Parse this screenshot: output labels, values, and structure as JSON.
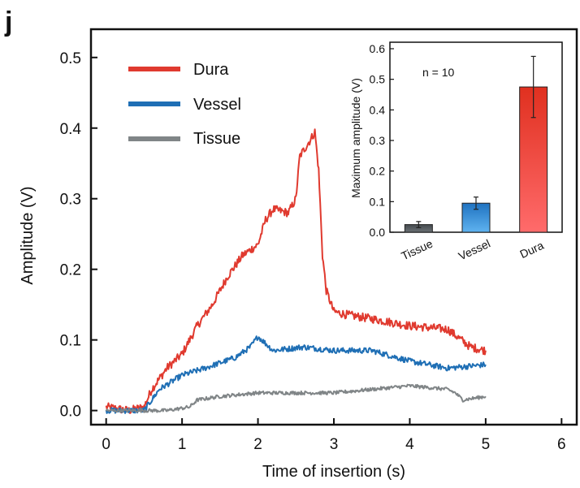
{
  "panel_label": "j",
  "chart_data": [
    {
      "type": "line",
      "title": "",
      "xlabel": "Time of insertion (s)",
      "ylabel": "Amplitude (V)",
      "xlim": [
        -0.2,
        6.2
      ],
      "ylim": [
        -0.02,
        0.54
      ],
      "xticks": [
        "0",
        "1",
        "2",
        "3",
        "4",
        "5",
        "6"
      ],
      "xtick_values": [
        0,
        1,
        2,
        3,
        4,
        5,
        6
      ],
      "yticks": [
        "0.0",
        "0.1",
        "0.2",
        "0.3",
        "0.4",
        "0.5"
      ],
      "ytick_values": [
        0,
        0.1,
        0.2,
        0.3,
        0.4,
        0.5
      ],
      "legend_position": "top-left",
      "series": [
        {
          "name": "Dura",
          "color": "#e03a2f",
          "x": [
            0,
            0.3,
            0.5,
            0.6,
            0.8,
            1.0,
            1.2,
            1.4,
            1.6,
            1.8,
            2.0,
            2.1,
            2.2,
            2.4,
            2.5,
            2.55,
            2.7,
            2.75,
            2.8,
            2.85,
            2.9,
            3.0,
            3.2,
            3.5,
            4.0,
            4.5,
            4.8,
            5.0
          ],
          "y": [
            0.005,
            0.0,
            0.005,
            0.03,
            0.06,
            0.08,
            0.12,
            0.15,
            0.19,
            0.22,
            0.235,
            0.27,
            0.285,
            0.28,
            0.3,
            0.36,
            0.385,
            0.395,
            0.34,
            0.22,
            0.17,
            0.14,
            0.135,
            0.13,
            0.12,
            0.115,
            0.09,
            0.085
          ]
        },
        {
          "name": "Vessel",
          "color": "#1f6fb5",
          "x": [
            0,
            0.5,
            0.7,
            1.0,
            1.3,
            1.7,
            1.9,
            2.0,
            2.2,
            2.6,
            3.0,
            3.5,
            4.0,
            4.5,
            5.0
          ],
          "y": [
            0.0,
            0.0,
            0.03,
            0.05,
            0.06,
            0.075,
            0.09,
            0.105,
            0.085,
            0.09,
            0.085,
            0.085,
            0.07,
            0.06,
            0.065
          ]
        },
        {
          "name": "Tissue",
          "color": "#808587",
          "x": [
            0,
            0.5,
            0.8,
            1.1,
            1.2,
            1.5,
            2.0,
            2.5,
            3.0,
            3.5,
            4.0,
            4.5,
            4.6,
            4.7,
            5.0
          ],
          "y": [
            0.0,
            0.0,
            0.0,
            0.005,
            0.015,
            0.02,
            0.025,
            0.025,
            0.025,
            0.03,
            0.035,
            0.03,
            0.025,
            0.015,
            0.02
          ]
        }
      ]
    },
    {
      "type": "bar",
      "title": "",
      "ylabel": "Maximum amplitude (V)",
      "annotation": "n = 10",
      "categories": [
        "Tissue",
        "Vessel",
        "Dura"
      ],
      "values": [
        0.025,
        0.095,
        0.475
      ],
      "errors": [
        0.01,
        0.02,
        0.1
      ],
      "colors": [
        "#555a5e",
        "#2a86d6",
        "#e8433a"
      ],
      "ylim": [
        0,
        0.6
      ],
      "yticks": [
        "0.0",
        "0.1",
        "0.2",
        "0.3",
        "0.4",
        "0.5",
        "0.6"
      ],
      "ytick_values": [
        0,
        0.1,
        0.2,
        0.3,
        0.4,
        0.5,
        0.6
      ]
    }
  ]
}
